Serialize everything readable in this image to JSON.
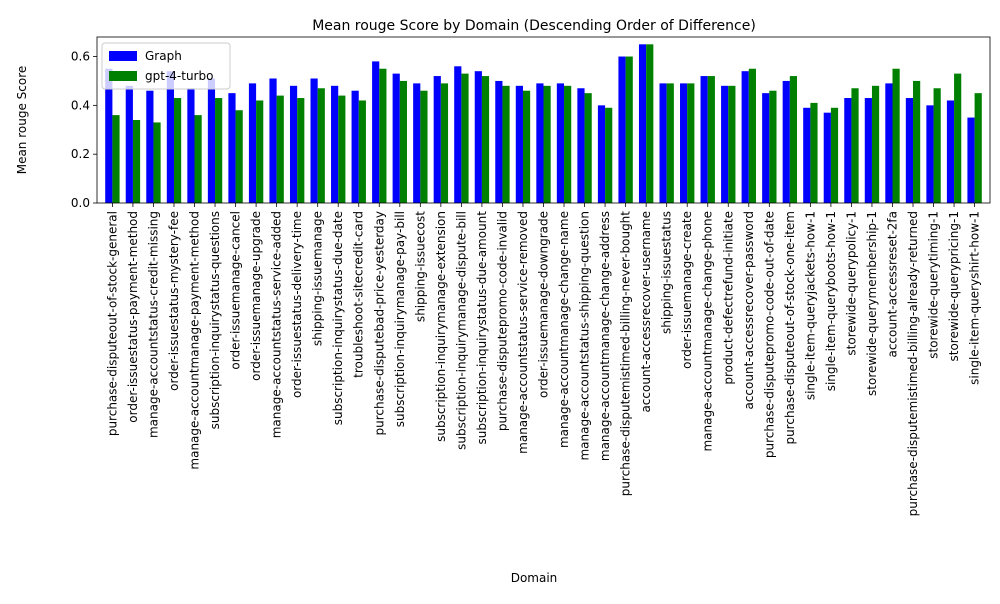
{
  "chart_data": {
    "type": "bar",
    "title": "Mean rouge Score by Domain (Descending Order of Difference)",
    "xlabel": "Domain",
    "ylabel": "Mean rouge Score",
    "ylim": [
      0,
      0.68
    ],
    "yticks": [
      0.0,
      0.2,
      0.4,
      0.6
    ],
    "ytick_labels": [
      "0.0",
      "0.2",
      "0.4",
      "0.6"
    ],
    "legend_position": "top-left",
    "grid": false,
    "categories": [
      "purchase-disputeout-of-stock-general",
      "order-issuestatus-payment-method",
      "manage-accountstatus-credit-missing",
      "order-issuestatus-mystery-fee",
      "manage-accountmanage-payment-method",
      "subscription-inquirystatus-questions",
      "order-issuemanage-cancel",
      "order-issuemanage-upgrade",
      "manage-accountstatus-service-added",
      "order-issuestatus-delivery-time",
      "shipping-issuemanage",
      "subscription-inquirystatus-due-date",
      "troubleshoot-sitecredit-card",
      "purchase-disputebad-price-yesterday",
      "subscription-inquirymanage-pay-bill",
      "shipping-issuecost",
      "subscription-inquirymanage-extension",
      "subscription-inquirymanage-dispute-bill",
      "subscription-inquirystatus-due-amount",
      "purchase-disputepromo-code-invalid",
      "manage-accountstatus-service-removed",
      "order-issuemanage-downgrade",
      "manage-accountmanage-change-name",
      "manage-accountstatus-shipping-question",
      "manage-accountmanage-change-address",
      "purchase-disputemistimed-billing-never-bought",
      "account-accessrecover-username",
      "shipping-issuestatus",
      "order-issuemanage-create",
      "manage-accountmanage-change-phone",
      "product-defectrefund-initiate",
      "account-accessrecover-password",
      "purchase-disputepromo-code-out-of-date",
      "purchase-disputeout-of-stock-one-item",
      "single-item-queryjackets-how-1",
      "single-item-queryboots-how-1",
      "storewide-querypolicy-1",
      "storewide-querymembership-1",
      "account-accessreset-2fa",
      "purchase-disputemistimed-billing-already-returned",
      "storewide-querytiming-1",
      "storewide-querypricing-1",
      "single-item-queryshirt-how-1"
    ],
    "series": [
      {
        "name": "Graph",
        "color": "#0000ff",
        "values": [
          0.55,
          0.48,
          0.46,
          0.54,
          0.47,
          0.51,
          0.45,
          0.49,
          0.51,
          0.48,
          0.51,
          0.48,
          0.46,
          0.58,
          0.53,
          0.49,
          0.52,
          0.56,
          0.54,
          0.5,
          0.48,
          0.49,
          0.49,
          0.47,
          0.4,
          0.6,
          0.65,
          0.49,
          0.49,
          0.52,
          0.48,
          0.54,
          0.45,
          0.5,
          0.39,
          0.37,
          0.43,
          0.43,
          0.49,
          0.43,
          0.4,
          0.42,
          0.35
        ]
      },
      {
        "name": "gpt-4-turbo",
        "color": "#008000",
        "values": [
          0.36,
          0.34,
          0.33,
          0.43,
          0.36,
          0.43,
          0.38,
          0.42,
          0.44,
          0.43,
          0.47,
          0.44,
          0.42,
          0.55,
          0.5,
          0.46,
          0.49,
          0.53,
          0.52,
          0.48,
          0.46,
          0.48,
          0.48,
          0.45,
          0.39,
          0.6,
          0.65,
          0.49,
          0.49,
          0.52,
          0.48,
          0.55,
          0.46,
          0.52,
          0.41,
          0.39,
          0.47,
          0.48,
          0.55,
          0.5,
          0.47,
          0.53,
          0.45
        ]
      }
    ]
  }
}
